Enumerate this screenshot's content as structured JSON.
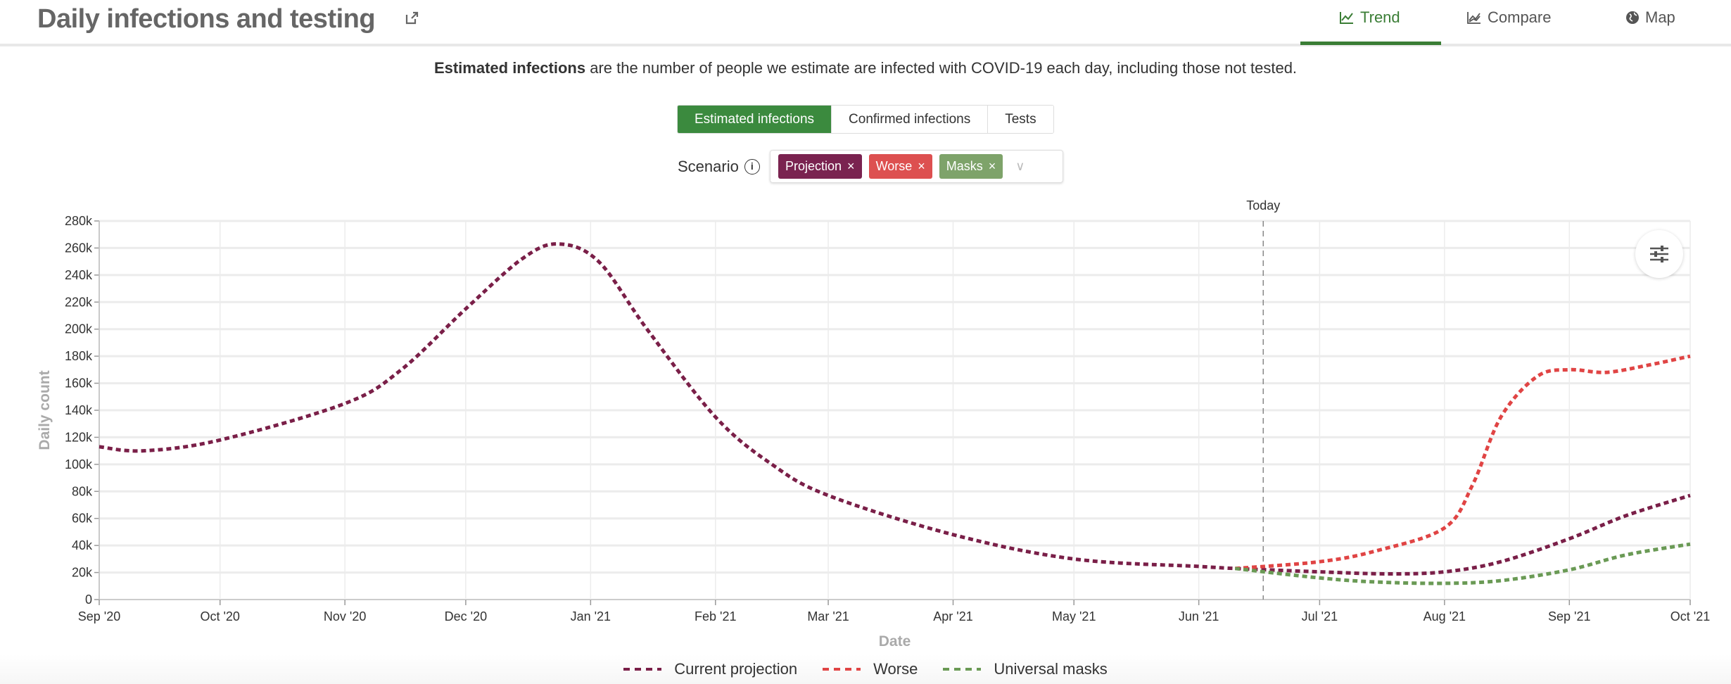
{
  "header": {
    "title": "Daily infections and testing",
    "tabs": [
      {
        "label": "Trend",
        "icon": "line-chart-icon"
      },
      {
        "label": "Compare",
        "icon": "compare-chart-icon"
      },
      {
        "label": "Map",
        "icon": "globe-icon"
      }
    ],
    "active_tab": "Trend"
  },
  "description": {
    "bold": "Estimated infections",
    "rest": " are the number of people we estimate are infected with COVID-19 each day, including those not tested."
  },
  "toggle": [
    "Estimated infections",
    "Confirmed infections",
    "Tests"
  ],
  "scenario": {
    "label": "Scenario",
    "chips": [
      {
        "label": "Projection",
        "color": "#7a2350"
      },
      {
        "label": "Worse",
        "color": "#dd5050"
      },
      {
        "label": "Masks",
        "color": "#7ea36a"
      }
    ],
    "remove": "×",
    "caret": "∨"
  },
  "colors": {
    "accent": "#3a7d35"
  },
  "chart_data": {
    "type": "line",
    "xlabel": "Date",
    "ylabel": "Daily count",
    "ylim": [
      0,
      280000
    ],
    "xlim": [
      "2020-09-01",
      "2021-10-01"
    ],
    "yticks": [
      0,
      20000,
      40000,
      60000,
      80000,
      100000,
      120000,
      140000,
      160000,
      180000,
      200000,
      220000,
      240000,
      260000,
      280000
    ],
    "ytick_labels": [
      "0",
      "20k",
      "40k",
      "60k",
      "80k",
      "100k",
      "120k",
      "140k",
      "160k",
      "180k",
      "200k",
      "220k",
      "240k",
      "260k",
      "280k"
    ],
    "xticks": [
      "2020-09-01",
      "2020-10-01",
      "2020-11-01",
      "2020-12-01",
      "2021-01-01",
      "2021-02-01",
      "2021-03-01",
      "2021-04-01",
      "2021-05-01",
      "2021-06-01",
      "2021-07-01",
      "2021-08-01",
      "2021-09-01",
      "2021-10-01"
    ],
    "xtick_labels": [
      "Sep '20",
      "Oct '20",
      "Nov '20",
      "Dec '20",
      "Jan '21",
      "Feb '21",
      "Mar '21",
      "Apr '21",
      "May '21",
      "Jun '21",
      "Jul '21",
      "Aug '21",
      "Sep '21",
      "Oct '21"
    ],
    "today": {
      "label": "Today",
      "date": "2021-06-17"
    },
    "grid": true,
    "legend_position": "bottom",
    "series": [
      {
        "name": "Current projection",
        "color": "#7a1f48",
        "points": [
          [
            "2020-09-01",
            113000
          ],
          [
            "2020-09-12",
            110000
          ],
          [
            "2020-10-01",
            118000
          ],
          [
            "2020-11-01",
            145000
          ],
          [
            "2020-11-15",
            170000
          ],
          [
            "2020-12-01",
            215000
          ],
          [
            "2020-12-15",
            252000
          ],
          [
            "2020-12-24",
            263000
          ],
          [
            "2021-01-03",
            250000
          ],
          [
            "2021-01-15",
            200000
          ],
          [
            "2021-02-01",
            135000
          ],
          [
            "2021-02-15",
            100000
          ],
          [
            "2021-03-01",
            77000
          ],
          [
            "2021-04-01",
            48000
          ],
          [
            "2021-05-01",
            30000
          ],
          [
            "2021-06-01",
            24500
          ],
          [
            "2021-06-10",
            23000
          ],
          [
            "2021-07-01",
            20500
          ],
          [
            "2021-07-18",
            19000
          ],
          [
            "2021-08-01",
            20500
          ],
          [
            "2021-08-15",
            28000
          ],
          [
            "2021-09-01",
            45000
          ],
          [
            "2021-09-15",
            62000
          ],
          [
            "2021-10-01",
            77000
          ]
        ]
      },
      {
        "name": "Worse",
        "color": "#e04444",
        "points": [
          [
            "2021-06-10",
            23000
          ],
          [
            "2021-07-01",
            28000
          ],
          [
            "2021-07-15",
            36000
          ],
          [
            "2021-08-01",
            53000
          ],
          [
            "2021-08-08",
            85000
          ],
          [
            "2021-08-15",
            135000
          ],
          [
            "2021-08-24",
            165000
          ],
          [
            "2021-09-01",
            170000
          ],
          [
            "2021-09-10",
            168000
          ],
          [
            "2021-09-20",
            173000
          ],
          [
            "2021-10-01",
            180000
          ]
        ]
      },
      {
        "name": "Universal masks",
        "color": "#6a9a55",
        "points": [
          [
            "2021-06-10",
            23000
          ],
          [
            "2021-07-01",
            16000
          ],
          [
            "2021-07-15",
            13000
          ],
          [
            "2021-08-01",
            12000
          ],
          [
            "2021-08-15",
            14000
          ],
          [
            "2021-09-01",
            22000
          ],
          [
            "2021-09-15",
            33000
          ],
          [
            "2021-10-01",
            41000
          ]
        ]
      }
    ]
  }
}
